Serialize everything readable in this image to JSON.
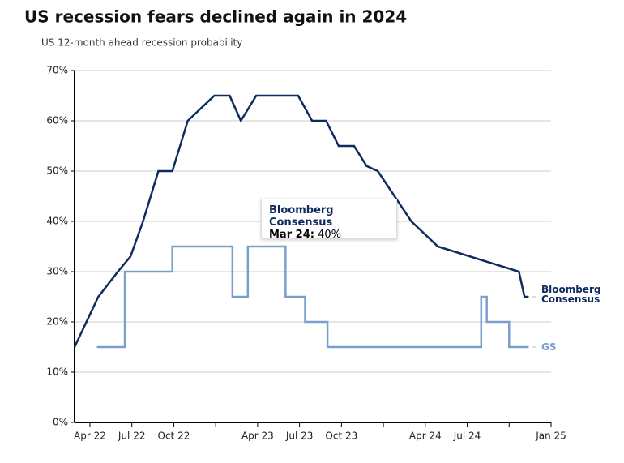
{
  "chart_data": {
    "type": "line",
    "title": "US recession fears declined again in 2024",
    "subtitle": "US 12-month ahead recession probability",
    "xlim": [
      1.9,
      36
    ],
    "xticks": [
      {
        "value": 3,
        "label": "Apr 22"
      },
      {
        "value": 6,
        "label": "Jul 22"
      },
      {
        "value": 9,
        "label": "Oct 22"
      },
      {
        "value": 12,
        "label": null
      },
      {
        "value": 15,
        "label": "Apr 23"
      },
      {
        "value": 18,
        "label": "Jul 23"
      },
      {
        "value": 21,
        "label": "Oct 23"
      },
      {
        "value": 24,
        "label": null
      },
      {
        "value": 27,
        "label": "Apr 24"
      },
      {
        "value": 30,
        "label": "Jul 24"
      },
      {
        "value": 33,
        "label": null
      },
      {
        "value": 36,
        "label": "Jan 25"
      }
    ],
    "ylim": [
      0,
      70
    ],
    "yticks": [
      {
        "value": 0,
        "label": "0%"
      },
      {
        "value": 10,
        "label": "10%"
      },
      {
        "value": 20,
        "label": "20%"
      },
      {
        "value": 30,
        "label": "30%"
      },
      {
        "value": 40,
        "label": "40%"
      },
      {
        "value": 50,
        "label": "50%"
      },
      {
        "value": 60,
        "label": "60%"
      },
      {
        "value": 70,
        "label": "70%"
      }
    ],
    "grid": true,
    "series": [
      {
        "name": "Bloomberg Consensus",
        "color": "#0d2b5e",
        "x": [
          1.9,
          3.6,
          5.0,
          5.9,
          6.8,
          7.9,
          8.9,
          10,
          11.9,
          13,
          13.8,
          14.9,
          17.9,
          18.9,
          19.9,
          20.8,
          21.9,
          22.8,
          23.6,
          26,
          27.9,
          33.7,
          34.1,
          34.4
        ],
        "values": [
          15,
          25,
          30,
          33,
          40,
          50,
          50,
          60,
          65,
          65,
          60,
          65,
          65,
          60,
          60,
          55,
          55,
          51,
          50,
          40,
          35,
          30,
          25,
          25
        ]
      },
      {
        "name": "GS",
        "color": "#7b9fcb",
        "x": [
          3.5,
          5.5,
          5.5,
          8.9,
          8.9,
          13.2,
          13.2,
          14.3,
          14.3,
          17,
          17,
          18.4,
          18.4,
          20,
          20,
          31,
          31,
          31.4,
          31.4,
          33,
          33,
          34.4
        ],
        "values": [
          15,
          15,
          30,
          30,
          35,
          35,
          25,
          25,
          35,
          35,
          25,
          25,
          20,
          20,
          15,
          15,
          25,
          25,
          20,
          20,
          15,
          15
        ]
      }
    ],
    "tooltip": {
      "x_label": "Mar 24:",
      "value_label": "40%"
    }
  }
}
